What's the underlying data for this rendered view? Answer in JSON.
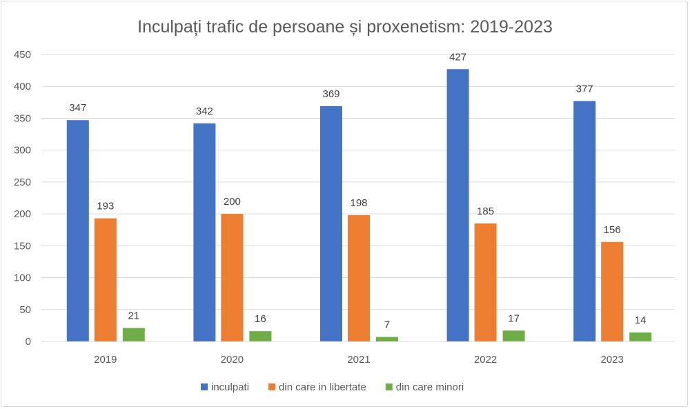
{
  "chart_data": {
    "type": "bar",
    "title": "Inculpați trafic de persoane și proxenetism: 2019-2023",
    "xlabel": "",
    "ylabel": "",
    "categories": [
      "2019",
      "2020",
      "2021",
      "2022",
      "2023"
    ],
    "ylim": [
      0,
      450
    ],
    "yticks": [
      0,
      50,
      100,
      150,
      200,
      250,
      300,
      350,
      400,
      450
    ],
    "grid": true,
    "legend_position": "bottom",
    "data_labels": true,
    "series": [
      {
        "name": "inculpati",
        "color": "#4472c4",
        "values": [
          347,
          342,
          369,
          427,
          377
        ]
      },
      {
        "name": "din care in libertate",
        "color": "#ed7d31",
        "values": [
          193,
          200,
          198,
          185,
          156
        ]
      },
      {
        "name": "din care minori",
        "color": "#70ad47",
        "values": [
          21,
          16,
          7,
          17,
          14
        ]
      }
    ]
  }
}
